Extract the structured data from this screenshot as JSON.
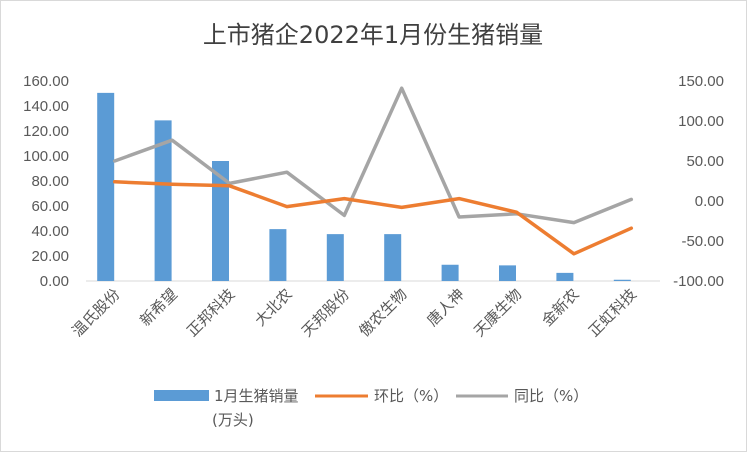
{
  "chart_data": {
    "type": "bar",
    "title": "上市猪企2022年1月份生猪销量",
    "categories": [
      "温氏股份",
      "新希望",
      "正邦科技",
      "大北农",
      "天邦股份",
      "傲农生物",
      "唐人神",
      "天康生物",
      "金新农",
      "正虹科技"
    ],
    "y_left": {
      "ylim": [
        0,
        160
      ],
      "ticks": [
        "0.00",
        "20.00",
        "40.00",
        "60.00",
        "80.00",
        "100.00",
        "120.00",
        "140.00",
        "160.00"
      ]
    },
    "y_right": {
      "ylim": [
        -100,
        150
      ],
      "ticks": [
        "-100.00",
        "-50.00",
        "0.00",
        "50.00",
        "100.00",
        "150.00"
      ]
    },
    "series": [
      {
        "name": "1月生猪销量(万头)",
        "name_line1": "1月生猪销量",
        "name_line2": "(万头)",
        "kind": "bar",
        "axis": "left",
        "color": "#5b9bd5",
        "values": [
          150.5,
          128.5,
          96.0,
          41.5,
          37.5,
          37.5,
          13.0,
          12.5,
          6.5,
          1.0
        ]
      },
      {
        "name": "环比（%）",
        "kind": "line",
        "axis": "right",
        "color": "#ed7d31",
        "values": [
          24.0,
          21.0,
          19.0,
          -7.0,
          3.0,
          -8.0,
          3.0,
          -14.0,
          -66.0,
          -34.0
        ]
      },
      {
        "name": "同比（%）",
        "kind": "line",
        "axis": "right",
        "color": "#a5a5a5",
        "values": [
          50.0,
          76.0,
          22.0,
          36.0,
          -18.0,
          141.0,
          -20.0,
          -16.0,
          -27.0,
          2.0
        ]
      }
    ],
    "grid": false,
    "legend": "bottom"
  }
}
